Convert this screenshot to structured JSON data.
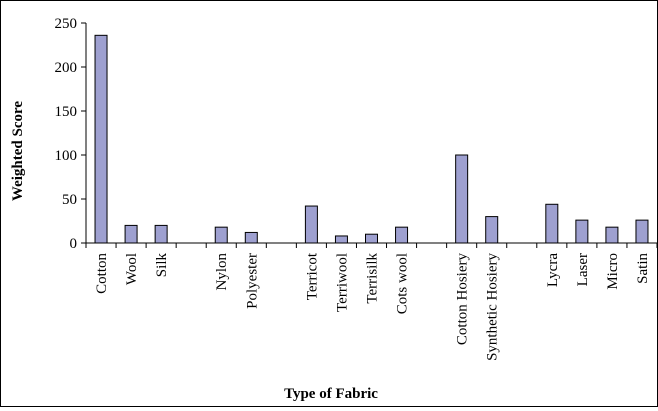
{
  "chart_data": {
    "type": "bar",
    "xlabel": "Type of Fabric",
    "ylabel": "Weighted Score",
    "ylim": [
      0,
      250
    ],
    "yticks": [
      0,
      50,
      100,
      150,
      200,
      250
    ],
    "grid": false,
    "legend": "none",
    "bar_color": "#9ea0d0",
    "categories": [
      "Cotton",
      "Wool",
      "Silk",
      "",
      "Nylon",
      "Polyester",
      "",
      "Terricot",
      "Terriwool",
      "Terrisilk",
      "Cots wool",
      "",
      "Cotton Hosiery",
      "Synthetic Hosiery",
      "",
      "Lycra",
      "Laser",
      "Micro",
      "Satin"
    ],
    "values": [
      236,
      20,
      20,
      null,
      18,
      12,
      null,
      42,
      8,
      10,
      18,
      null,
      100,
      30,
      null,
      44,
      26,
      18,
      26
    ]
  }
}
